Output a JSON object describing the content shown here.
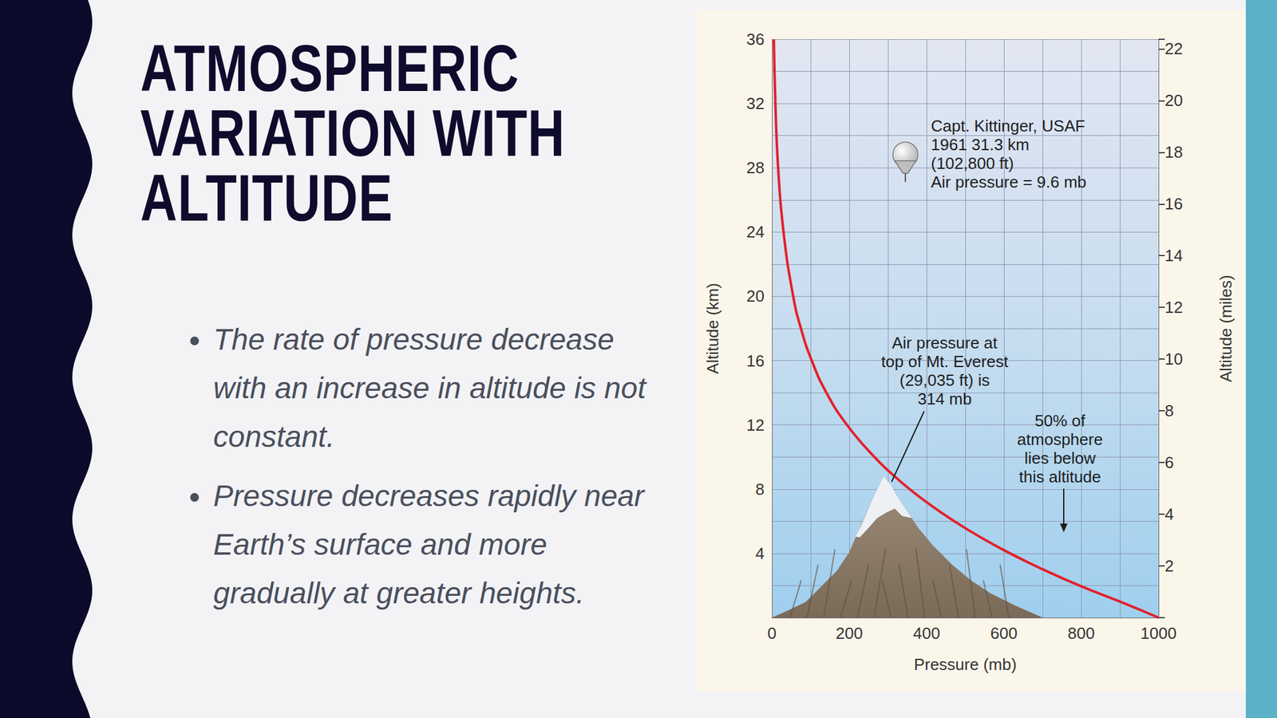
{
  "slide": {
    "title": "ATMOSPHERIC VARIATION WITH ALTITUDE",
    "bullets": [
      "The rate of pressure decrease with an increase in altitude is not constant.",
      "Pressure decreases rapidly near Earth’s surface and more gradually at greater heights."
    ]
  },
  "chart_data": {
    "type": "line",
    "x_label": "Pressure (mb)",
    "y_label": "Altitude (km)",
    "y2_label": "Altitude (miles)",
    "x": [
      1000,
      900,
      795,
      701,
      616,
      540,
      472,
      411,
      356,
      308,
      265,
      194,
      141,
      103,
      75,
      55,
      30,
      16,
      9,
      5
    ],
    "values": [
      0,
      1,
      2,
      3,
      4,
      5,
      6,
      7,
      8,
      9,
      10,
      12,
      14,
      16,
      18,
      20,
      24,
      28,
      32,
      36
    ],
    "color": "#e3202a",
    "xlim": [
      0,
      1000
    ],
    "xticks": [
      0,
      200,
      400,
      600,
      800,
      1000
    ],
    "ylim": [
      0,
      36
    ],
    "yticks": [
      4,
      8,
      12,
      16,
      20,
      24,
      28,
      32,
      36
    ],
    "y2lim": [
      0,
      22.37
    ],
    "y2ticks": [
      2,
      4,
      6,
      8,
      10,
      12,
      14,
      16,
      18,
      20,
      22
    ],
    "grid": true,
    "annotations": {
      "balloon": [
        "Capt. Kittinger, USAF",
        "1961 31.3 km",
        "(102,800 ft)",
        "Air pressure = 9.6 mb"
      ],
      "everest": [
        "Air pressure at",
        "top of Mt. Everest",
        "(29,035 ft) is",
        "314 mb"
      ],
      "half": [
        "50% of",
        "atmosphere",
        "lies below",
        "this altitude"
      ]
    }
  }
}
